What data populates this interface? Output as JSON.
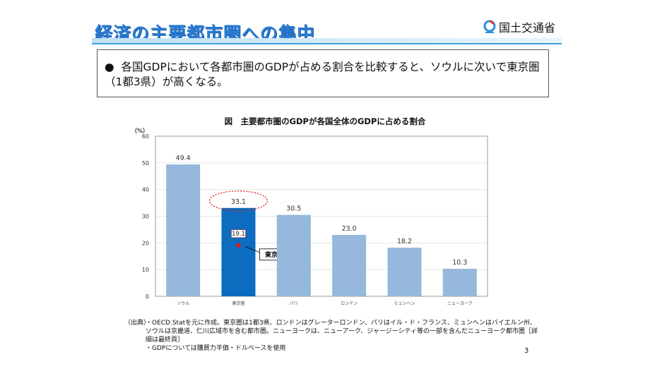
{
  "header": {
    "title": "経済の主要都市圏への集中",
    "ministry": "国土交通省",
    "logo_icon": "mlit-logo-icon"
  },
  "summary": {
    "bullet": "●",
    "text": "各国GDPにおいて各都市圏のGDPが占める割合を比較すると、ソウルに次いで東京圏（1都3県）が高くなる。"
  },
  "chart_data": {
    "type": "bar",
    "title": "図　主要都市圏のGDPが各国全体のGDPに占める割合",
    "ylabel": "（%）",
    "ylim": [
      0,
      60
    ],
    "yticks": [
      0,
      10,
      20,
      30,
      40,
      50,
      60
    ],
    "grid": true,
    "categories": [
      "ソウル",
      "東京圏",
      "パリ",
      "ロンドン",
      "ミュンヘン",
      "ニューヨーク"
    ],
    "values": [
      49.4,
      33.1,
      30.5,
      23.0,
      18.2,
      10.3
    ],
    "value_labels": [
      "49.4",
      "33.1",
      "30.5",
      "23.0",
      "18.2",
      "10.3"
    ],
    "highlight_index": 1,
    "colors": {
      "bar": "#95b8dc",
      "highlight": "#0b6cc0",
      "marker": "#e8141c",
      "ellipse": "#e02020"
    },
    "annotation": {
      "label": "東京都",
      "value": 19.1,
      "value_label": "19.1",
      "category_index": 1
    }
  },
  "source": {
    "lead": "（出典）",
    "lines": [
      "・OECD.Statを元に作成。東京圏は1都3県、ロンドンはグレーターロンドン、パリはイル・ド・フランス、ミュンヘンはバイエルン州、ソウルは京畿道、仁川広域市を含む都市圏。ニューヨークは、ニューアーク、ジャージーシティ等の一部を含んだニューヨーク都市圏［詳細は最終頁］",
      "・GDPについては購買力平価・ドルベースを使用"
    ]
  },
  "page_number": "3"
}
